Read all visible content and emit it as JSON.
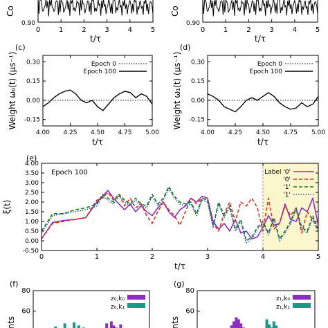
{
  "colors": {
    "axis": "#000000",
    "purple": "#8e2dc5",
    "red": "#e0301e",
    "green": "#1a7a1a",
    "blue": "#1f5ab5",
    "teal": "#1a9a86",
    "highlight": "#fbf6cc"
  },
  "chart_data": [
    {
      "id": "a",
      "type": "line",
      "ylabel": "Co",
      "xlabel": "t/τ",
      "xticks": [
        "0",
        "1",
        "2",
        "3",
        "4",
        "5"
      ],
      "yticks": [
        "0.90"
      ],
      "xlim": [
        0,
        5
      ]
    },
    {
      "id": "b",
      "type": "line",
      "ylabel": "Co",
      "xlabel": "t/τ",
      "xticks": [
        "0",
        "1",
        "2",
        "3",
        "4",
        "5"
      ],
      "yticks": [
        "0.90"
      ],
      "xlim": [
        0,
        5
      ]
    },
    {
      "id": "c",
      "panel_label": "(c)",
      "type": "line",
      "ylabel": "Weight ω₀(t) (μs⁻¹)",
      "xlabel": "t/τ",
      "xlim": [
        4.0,
        5.0
      ],
      "ylim": [
        -0.2,
        0.35
      ],
      "xticks": [
        "4.00",
        "4.25",
        "4.50",
        "4.75",
        "5.00"
      ],
      "yticks": [
        "-0.15",
        "0.00",
        "0.15",
        "0.30"
      ],
      "legend": [
        "Epoch 0",
        "Epoch 100"
      ],
      "series": [
        {
          "name": "Epoch 0",
          "x": [
            4.0,
            5.0
          ],
          "y": [
            0.0,
            0.0
          ]
        },
        {
          "name": "Epoch 100",
          "x": [
            4.0,
            4.05,
            4.1,
            4.15,
            4.2,
            4.25,
            4.3,
            4.35,
            4.4,
            4.45,
            4.5,
            4.55,
            4.6,
            4.65,
            4.7,
            4.75,
            4.8,
            4.85,
            4.9,
            4.95,
            5.0
          ],
          "y": [
            -0.05,
            -0.02,
            0.02,
            0.05,
            0.07,
            0.08,
            0.05,
            0.0,
            -0.02,
            0.0,
            -0.05,
            -0.08,
            -0.03,
            0.02,
            0.05,
            0.07,
            0.06,
            0.02,
            0.05,
            0.03,
            -0.03
          ]
        }
      ]
    },
    {
      "id": "d",
      "panel_label": "(d)",
      "type": "line",
      "ylabel": "Weight ω₁(t) (μs⁻¹)",
      "xlabel": "t/τ",
      "xlim": [
        4.0,
        5.0
      ],
      "ylim": [
        -0.2,
        0.35
      ],
      "xticks": [
        "4.00",
        "4.25",
        "4.50",
        "4.75",
        "5.00"
      ],
      "yticks": [
        "-0.15",
        "0.00",
        "0.15",
        "0.30"
      ],
      "legend": [
        "Epoch 0",
        "Epoch 100"
      ],
      "series": [
        {
          "name": "Epoch 0",
          "x": [
            4.0,
            5.0
          ],
          "y": [
            0.0,
            0.0
          ]
        },
        {
          "name": "Epoch 100",
          "x": [
            4.0,
            4.05,
            4.1,
            4.15,
            4.2,
            4.25,
            4.3,
            4.35,
            4.4,
            4.45,
            4.5,
            4.55,
            4.6,
            4.65,
            4.7,
            4.75,
            4.8,
            4.85,
            4.9,
            4.95,
            5.0
          ],
          "y": [
            0.05,
            0.03,
            0.0,
            -0.05,
            -0.07,
            -0.09,
            -0.05,
            0.0,
            0.02,
            0.0,
            0.03,
            0.06,
            0.03,
            -0.02,
            -0.05,
            -0.07,
            -0.06,
            -0.02,
            -0.05,
            -0.03,
            0.03
          ]
        }
      ]
    },
    {
      "id": "e",
      "panel_label": "(e)",
      "type": "line",
      "annotation": "Epoch 100",
      "ylabel": "ξ(t)",
      "xlabel": "t/τ",
      "xlim": [
        0,
        5
      ],
      "ylim": [
        -0.5,
        4.0
      ],
      "xticks": [
        "0",
        "1",
        "2",
        "3",
        "4",
        "5"
      ],
      "yticks": [
        "-0.50",
        "0.00",
        "0.50",
        "1.00",
        "1.50",
        "2.00",
        "2.50",
        "3.00",
        "3.50",
        "4.00"
      ],
      "highlight_x": [
        4.0,
        5.0
      ],
      "legend": [
        "Label '0'",
        "'0'",
        "'1'",
        "'1'"
      ],
      "series": [
        {
          "name": "Label '0'",
          "style": "solid",
          "color": "purple",
          "x": [
            0,
            0.2,
            0.4,
            0.6,
            0.8,
            1.0,
            1.1,
            1.2,
            1.3,
            1.4,
            1.5,
            1.6,
            1.7,
            1.8,
            1.9,
            2.0,
            2.1,
            2.2,
            2.3,
            2.4,
            2.5,
            2.6,
            2.7,
            2.8,
            2.9,
            3.0,
            3.1,
            3.2,
            3.3,
            3.4,
            3.5,
            3.6,
            3.7,
            3.8,
            3.9,
            4.0,
            4.1,
            4.2,
            4.3,
            4.4,
            4.5,
            4.6,
            4.7,
            4.8,
            4.9,
            5.0
          ],
          "y": [
            0.1,
            0.95,
            1.05,
            1.1,
            1.2,
            2.0,
            2.3,
            2.6,
            2.2,
            1.9,
            1.6,
            1.9,
            1.5,
            1.8,
            1.5,
            1.3,
            1.7,
            2.0,
            1.5,
            1.2,
            1.6,
            1.8,
            2.2,
            2.0,
            2.3,
            2.2,
            1.0,
            0.6,
            0.9,
            0.5,
            1.1,
            0.4,
            0.5,
            0.1,
            0.2,
            0.7,
            1.3,
            0.8,
            0.9,
            1.9,
            1.1,
            1.0,
            1.7,
            1.5,
            2.2,
            0.8
          ]
        },
        {
          "name": "'0'",
          "style": "dashed",
          "color": "red",
          "x": [
            0,
            0.2,
            0.4,
            0.6,
            0.8,
            1.0,
            1.1,
            1.2,
            1.3,
            1.4,
            1.5,
            1.6,
            1.7,
            1.8,
            1.9,
            2.0,
            2.1,
            2.2,
            2.3,
            2.4,
            2.5,
            2.6,
            2.7,
            2.8,
            2.9,
            3.0,
            3.1,
            3.2,
            3.3,
            3.4,
            3.5,
            3.6,
            3.7,
            3.8,
            3.9,
            4.0,
            4.1,
            4.2,
            4.3,
            4.4,
            4.5,
            4.6,
            4.7,
            4.8,
            4.9,
            5.0
          ],
          "y": [
            0.1,
            0.9,
            1.0,
            1.1,
            1.2,
            2.1,
            2.2,
            2.5,
            2.1,
            2.4,
            1.8,
            2.2,
            1.7,
            1.9,
            1.3,
            0.9,
            1.5,
            2.0,
            1.6,
            1.3,
            0.8,
            1.5,
            2.2,
            1.9,
            2.2,
            2.1,
            0.9,
            0.5,
            1.4,
            2.0,
            1.0,
            2.0,
            1.8,
            2.2,
            1.7,
            0.5,
            2.2,
            0.6,
            0.9,
            1.8,
            1.3,
            1.7,
            0.4,
            1.5,
            1.1,
            0.5
          ]
        },
        {
          "name": "'1'",
          "style": "dashed",
          "color": "green",
          "x": [
            0,
            0.2,
            0.4,
            0.6,
            0.8,
            1.0,
            1.1,
            1.2,
            1.3,
            1.4,
            1.5,
            1.6,
            1.7,
            1.8,
            1.9,
            2.0,
            2.1,
            2.2,
            2.3,
            2.4,
            2.5,
            2.6,
            2.7,
            2.8,
            2.9,
            3.0,
            3.1,
            3.2,
            3.3,
            3.4,
            3.5,
            3.6,
            3.7,
            3.8,
            3.9,
            4.0,
            4.1,
            4.2,
            4.3,
            4.4,
            4.5,
            4.6,
            4.7,
            4.8,
            4.9,
            5.0
          ],
          "y": [
            0.5,
            1.4,
            1.4,
            1.6,
            1.7,
            1.9,
            2.4,
            2.2,
            2.0,
            2.4,
            2.1,
            1.9,
            2.2,
            1.9,
            1.8,
            2.4,
            1.9,
            2.2,
            2.8,
            2.3,
            2.0,
            1.9,
            2.0,
            1.4,
            2.2,
            2.1,
            0.8,
            2.0,
            1.3,
            1.8,
            0.6,
            1.1,
            0.0,
            0.2,
            0.7,
            1.0,
            0.4,
            1.2,
            0.1,
            0.5,
            1.0,
            1.7,
            0.7,
            0.5,
            1.3,
            0.6
          ]
        },
        {
          "name": "'1'",
          "style": "dotted",
          "color": "blue",
          "x": [
            0,
            0.2,
            0.4,
            0.6,
            0.8,
            1.0,
            1.1,
            1.2,
            1.3,
            1.4,
            1.5,
            1.6,
            1.7,
            1.8,
            1.9,
            2.0,
            2.1,
            2.2,
            2.3,
            2.4,
            2.5,
            2.6,
            2.7,
            2.8,
            2.9,
            3.0,
            3.1,
            3.2,
            3.3,
            3.4,
            3.5,
            3.6,
            3.7,
            3.8,
            3.9,
            4.0,
            4.1,
            4.2,
            4.3,
            4.4,
            4.5,
            4.6,
            4.7,
            4.8,
            4.9,
            5.0
          ],
          "y": [
            0.4,
            1.3,
            1.4,
            1.5,
            1.6,
            1.8,
            2.3,
            2.1,
            1.9,
            2.3,
            2.0,
            1.8,
            2.1,
            1.8,
            1.7,
            2.3,
            1.8,
            2.1,
            2.7,
            2.2,
            1.9,
            1.8,
            1.9,
            1.3,
            2.1,
            2.0,
            0.7,
            1.9,
            1.2,
            1.7,
            0.5,
            1.0,
            -0.1,
            0.1,
            0.6,
            0.9,
            0.3,
            1.1,
            0.0,
            0.4,
            0.9,
            1.6,
            0.6,
            0.4,
            1.2,
            0.5
          ]
        }
      ]
    },
    {
      "id": "f",
      "panel_label": "(f)",
      "type": "bar",
      "ylabel": "unts",
      "yticks": [
        "40",
        "60",
        "80"
      ],
      "legend": [
        "z₀,k₀",
        "z₀,k₁"
      ],
      "series": [
        {
          "name": "z₀,k₀",
          "color": "purple",
          "x": [
            0.62,
            0.64,
            0.66,
            0.68,
            0.7,
            0.72,
            0.74
          ],
          "values": [
            48,
            42,
            50,
            46,
            44,
            41,
            47
          ]
        },
        {
          "name": "z₀,k₁",
          "color": "teal",
          "x": [
            0.18,
            0.22,
            0.26,
            0.3,
            0.34,
            0.38,
            0.42
          ],
          "values": [
            45,
            43,
            48,
            42,
            49,
            46,
            44
          ]
        }
      ]
    },
    {
      "id": "g",
      "panel_label": "(g)",
      "type": "bar",
      "ylabel": "unts",
      "yticks": [
        "40",
        "60",
        "80"
      ],
      "legend": [
        "z₁,k₀",
        "z₁,k₁"
      ],
      "series": [
        {
          "name": "z₁,k₀",
          "color": "purple",
          "x": [
            0.28,
            0.3,
            0.32,
            0.34,
            0.36,
            0.38
          ],
          "values": [
            46,
            50,
            54,
            52,
            48,
            44
          ]
        },
        {
          "name": "z₁,k₁",
          "color": "teal",
          "x": [
            0.58,
            0.6,
            0.62,
            0.64,
            0.66,
            0.68
          ],
          "values": [
            52,
            47,
            44,
            50,
            46,
            42
          ]
        }
      ]
    }
  ]
}
